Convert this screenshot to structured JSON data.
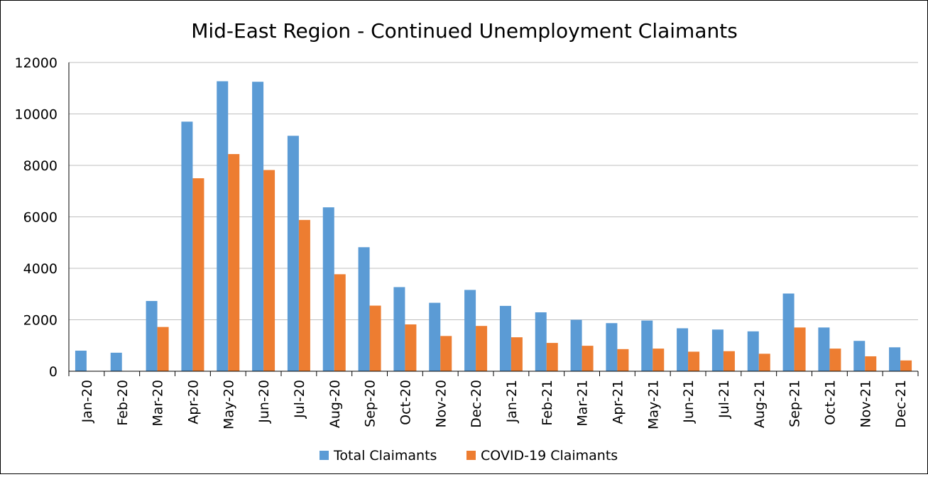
{
  "chart_data": {
    "type": "bar",
    "title": "Mid-East Region - Continued Unemployment Claimants",
    "xlabel": "",
    "ylabel": "",
    "ylim": [
      0,
      12000
    ],
    "yticks": [
      0,
      2000,
      4000,
      6000,
      8000,
      10000,
      12000
    ],
    "grid": true,
    "legend_position": "bottom",
    "categories": [
      "Jan-20",
      "Feb-20",
      "Mar-20",
      "Apr-20",
      "May-20",
      "Jun-20",
      "Jul-20",
      "Aug-20",
      "Sep-20",
      "Oct-20",
      "Nov-20",
      "Dec-20",
      "Jan-21",
      "Feb-21",
      "Mar-21",
      "Apr-21",
      "May-21",
      "Jun-21",
      "Jul-21",
      "Aug-21",
      "Sep-21",
      "Oct-21",
      "Nov-21",
      "Dec-21"
    ],
    "series": [
      {
        "name": "Total Claimants",
        "color": "#5B9BD5",
        "values": [
          800,
          720,
          2730,
          9700,
          11270,
          11250,
          9150,
          6370,
          4820,
          3270,
          2660,
          3160,
          2540,
          2290,
          2000,
          1870,
          1970,
          1670,
          1620,
          1550,
          3020,
          1700,
          1180,
          930
        ]
      },
      {
        "name": "COVID-19 Claimants",
        "color": "#ED7D31",
        "values": [
          0,
          0,
          1720,
          7500,
          8440,
          7820,
          5880,
          3770,
          2550,
          1820,
          1370,
          1760,
          1320,
          1100,
          990,
          860,
          880,
          760,
          780,
          680,
          1700,
          880,
          580,
          420
        ]
      }
    ]
  }
}
